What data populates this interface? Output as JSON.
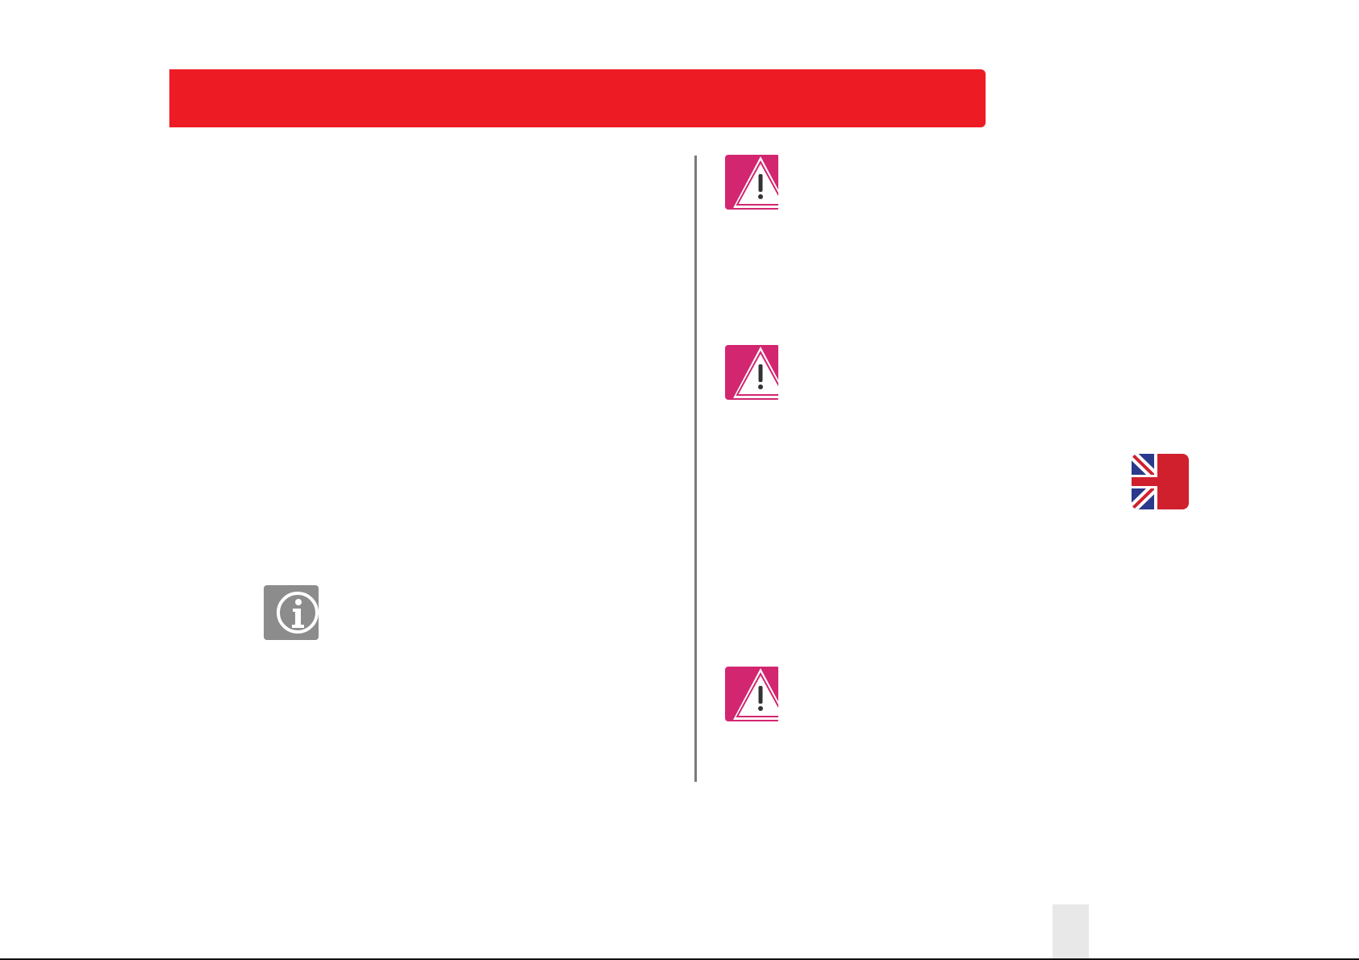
{
  "colors": {
    "header": "#ed1c24",
    "warning": "#d22670",
    "info": "#8c8c8c",
    "divider": "#7a7a7a",
    "page_tab": "#e8e8e8"
  },
  "icons": {
    "warnings": [
      "warning-triangle-icon",
      "warning-triangle-icon",
      "warning-triangle-icon"
    ],
    "info": "info-icon",
    "flag": "uk-flag-icon"
  }
}
